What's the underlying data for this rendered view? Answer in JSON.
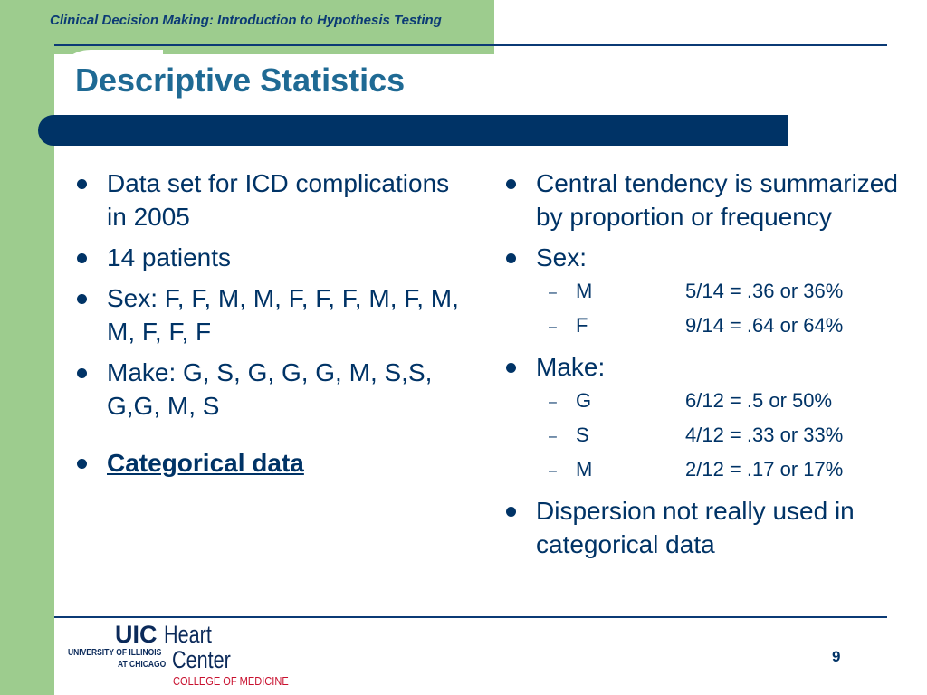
{
  "header": {
    "title": "Clinical Decision Making: Introduction to Hypothesis Testing"
  },
  "slide": {
    "title": "Descriptive Statistics",
    "left_bullets": [
      "Data set for ICD complications in 2005",
      "14 patients",
      "Sex: F, F, M, M, F, F, F, M, F, M, M, F, F, F",
      "Make: G, S, G, G, G, M, S,S, G,G, M, S",
      "Categorical data"
    ],
    "right_bullets": [
      {
        "text": "Central tendency is summarized by proportion or frequency"
      },
      {
        "text": "Sex:",
        "sub": [
          {
            "label": "M",
            "value": "5/14 = .36 or 36%"
          },
          {
            "label": "F",
            "value": "9/14 = .64 or 64%"
          }
        ]
      },
      {
        "text": "Make:",
        "sub": [
          {
            "label": "G",
            "value": "6/12 = .5 or 50%"
          },
          {
            "label": "S",
            "value": "4/12 = .33 or 33%"
          },
          {
            "label": "M",
            "value": "2/12 = .17 or 17%"
          }
        ]
      },
      {
        "text": "Dispersion not really used in categorical data"
      }
    ]
  },
  "footer": {
    "logo": {
      "uic": "UIC",
      "heart": "Heart",
      "center": "Center",
      "university": "UNIVERSITY OF ILLINOIS",
      "chicago": "AT CHICAGO",
      "college": "COLLEGE OF MEDICINE"
    },
    "page_number": "9"
  }
}
